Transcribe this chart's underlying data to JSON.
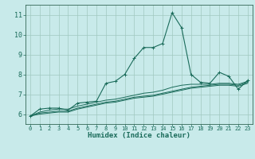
{
  "title": "",
  "xlabel": "Humidex (Indice chaleur)",
  "ylabel": "",
  "background_color": "#c8eaea",
  "grid_color": "#a0c8c0",
  "line_color": "#1a6b5a",
  "axis_color": "#336655",
  "xlim": [
    -0.5,
    23.5
  ],
  "ylim": [
    5.5,
    11.5
  ],
  "xticks": [
    0,
    1,
    2,
    3,
    4,
    5,
    6,
    7,
    8,
    9,
    10,
    11,
    12,
    13,
    14,
    15,
    16,
    17,
    18,
    19,
    20,
    21,
    22,
    23
  ],
  "yticks": [
    6,
    7,
    8,
    9,
    10,
    11
  ],
  "curves": [
    {
      "x": [
        0,
        1,
        2,
        3,
        4,
        5,
        6,
        7,
        8,
        9,
        10,
        11,
        12,
        13,
        14,
        15,
        16,
        17,
        18,
        19,
        20,
        21,
        22,
        23
      ],
      "y": [
        5.9,
        6.25,
        6.3,
        6.3,
        6.2,
        6.55,
        6.6,
        6.65,
        7.55,
        7.65,
        8.0,
        8.8,
        9.35,
        9.35,
        9.55,
        11.1,
        10.35,
        8.0,
        7.6,
        7.55,
        8.1,
        7.9,
        7.25,
        7.7
      ],
      "marker": true
    },
    {
      "x": [
        0,
        1,
        2,
        3,
        4,
        5,
        6,
        7,
        8,
        9,
        10,
        11,
        12,
        13,
        14,
        15,
        16,
        17,
        18,
        19,
        20,
        21,
        22,
        23
      ],
      "y": [
        5.9,
        6.1,
        6.2,
        6.25,
        6.25,
        6.4,
        6.5,
        6.6,
        6.7,
        6.75,
        6.85,
        6.95,
        7.05,
        7.1,
        7.2,
        7.35,
        7.45,
        7.5,
        7.5,
        7.5,
        7.55,
        7.55,
        7.5,
        7.65
      ],
      "marker": false
    },
    {
      "x": [
        0,
        1,
        2,
        3,
        4,
        5,
        6,
        7,
        8,
        9,
        10,
        11,
        12,
        13,
        14,
        15,
        16,
        17,
        18,
        19,
        20,
        21,
        22,
        23
      ],
      "y": [
        5.9,
        6.05,
        6.1,
        6.15,
        6.15,
        6.3,
        6.4,
        6.5,
        6.6,
        6.65,
        6.75,
        6.85,
        6.9,
        6.95,
        7.05,
        7.15,
        7.25,
        7.35,
        7.4,
        7.45,
        7.5,
        7.5,
        7.45,
        7.6
      ],
      "marker": false
    },
    {
      "x": [
        0,
        1,
        2,
        3,
        4,
        5,
        6,
        7,
        8,
        9,
        10,
        11,
        12,
        13,
        14,
        15,
        16,
        17,
        18,
        19,
        20,
        21,
        22,
        23
      ],
      "y": [
        5.9,
        6.0,
        6.05,
        6.1,
        6.1,
        6.25,
        6.35,
        6.45,
        6.55,
        6.6,
        6.7,
        6.8,
        6.85,
        6.9,
        7.0,
        7.1,
        7.2,
        7.3,
        7.35,
        7.4,
        7.45,
        7.45,
        7.4,
        7.55
      ],
      "marker": false
    }
  ]
}
